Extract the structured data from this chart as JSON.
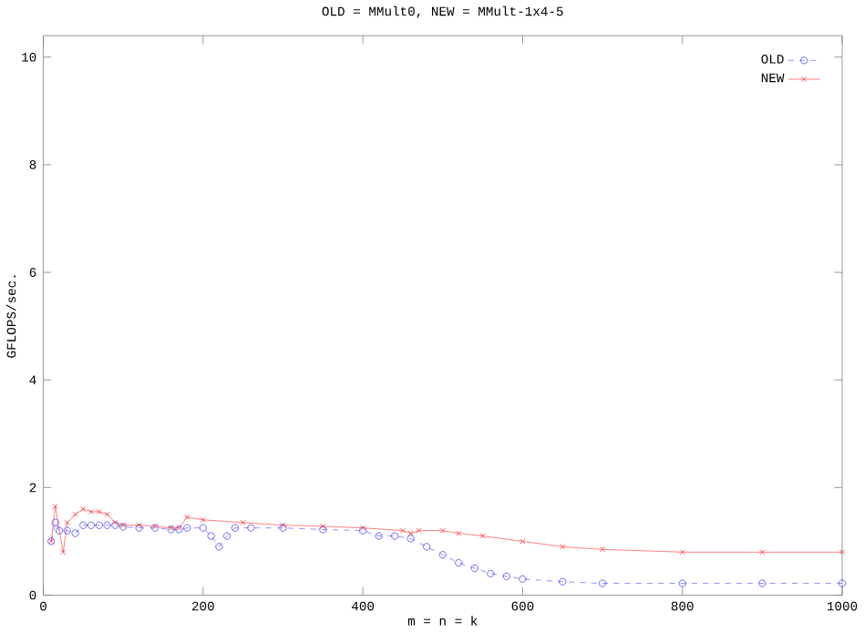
{
  "chart_data": {
    "type": "line",
    "title": "OLD = MMult0, NEW = MMult-1x4-5",
    "xlabel": "m = n = k",
    "ylabel": "GFLOPS/sec.",
    "xlim": [
      0,
      1000
    ],
    "ylim": [
      0,
      10.4
    ],
    "xticks": [
      0,
      200,
      400,
      600,
      800,
      1000
    ],
    "yticks": [
      0,
      2,
      4,
      6,
      8,
      10
    ],
    "legend": "top right",
    "grid": false,
    "series": [
      {
        "name": "OLD",
        "color": "#4a4aff",
        "marker": "circle",
        "line_style": "dashed",
        "x": [
          10,
          15,
          20,
          30,
          40,
          50,
          60,
          70,
          80,
          90,
          100,
          120,
          140,
          160,
          170,
          180,
          200,
          210,
          220,
          230,
          240,
          260,
          300,
          350,
          400,
          420,
          440,
          460,
          480,
          500,
          520,
          540,
          560,
          580,
          600,
          650,
          700,
          800,
          900,
          1000
        ],
        "values": [
          1.0,
          1.35,
          1.2,
          1.2,
          1.15,
          1.3,
          1.3,
          1.3,
          1.3,
          1.3,
          1.27,
          1.25,
          1.25,
          1.22,
          1.22,
          1.25,
          1.25,
          1.1,
          0.9,
          1.1,
          1.25,
          1.25,
          1.25,
          1.22,
          1.2,
          1.1,
          1.1,
          1.05,
          0.9,
          0.75,
          0.6,
          0.5,
          0.4,
          0.35,
          0.3,
          0.25,
          0.22,
          0.22,
          0.22,
          0.22
        ]
      },
      {
        "name": "NEW",
        "color": "#ff3030",
        "marker": "cross",
        "line_style": "solid",
        "x": [
          10,
          15,
          25,
          30,
          40,
          50,
          60,
          70,
          80,
          90,
          100,
          120,
          140,
          160,
          170,
          180,
          200,
          250,
          300,
          350,
          400,
          450,
          460,
          470,
          500,
          520,
          550,
          600,
          650,
          700,
          800,
          900,
          1000
        ],
        "values": [
          1.0,
          1.65,
          0.8,
          1.35,
          1.5,
          1.6,
          1.55,
          1.55,
          1.5,
          1.35,
          1.3,
          1.3,
          1.28,
          1.25,
          1.25,
          1.45,
          1.4,
          1.35,
          1.3,
          1.28,
          1.25,
          1.2,
          1.15,
          1.2,
          1.2,
          1.15,
          1.1,
          1.0,
          0.9,
          0.85,
          0.8,
          0.8,
          0.8
        ]
      }
    ]
  }
}
